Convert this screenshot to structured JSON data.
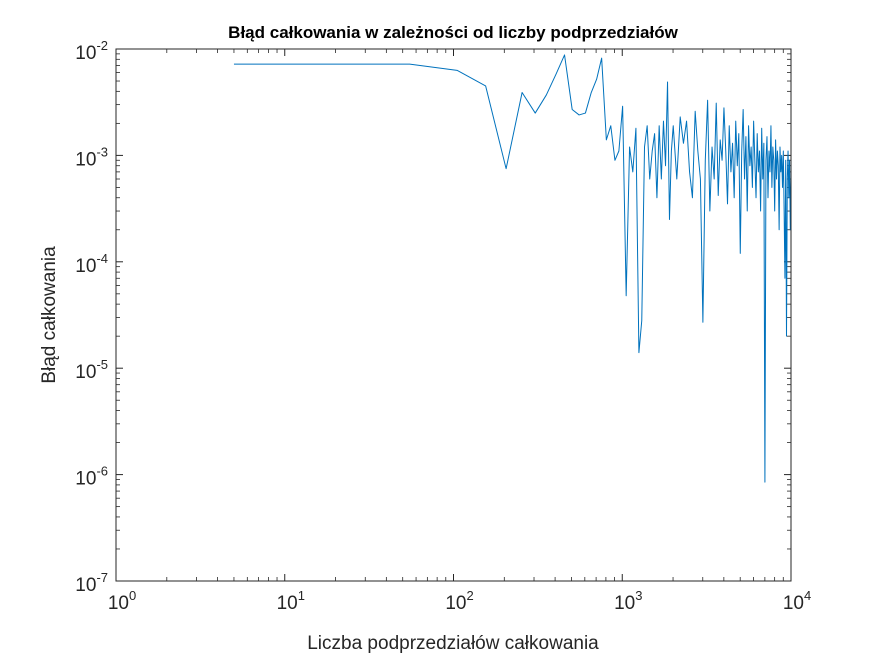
{
  "chart_data": {
    "type": "line",
    "title": "Błąd całkowania w zależności od liczby podprzedziałów",
    "xlabel": "Liczba podprzedziałów całkowania",
    "ylabel": "Błąd całkowania",
    "xscale": "log",
    "yscale": "log",
    "xlim": [
      1,
      10000
    ],
    "ylim": [
      1e-07,
      0.01
    ],
    "x_ticks": [
      {
        "mantissa": "10",
        "exp": "0"
      },
      {
        "mantissa": "10",
        "exp": "1"
      },
      {
        "mantissa": "10",
        "exp": "2"
      },
      {
        "mantissa": "10",
        "exp": "3"
      },
      {
        "mantissa": "10",
        "exp": "4"
      }
    ],
    "y_ticks": [
      {
        "mantissa": "10",
        "exp": "-7"
      },
      {
        "mantissa": "10",
        "exp": "-6"
      },
      {
        "mantissa": "10",
        "exp": "-5"
      },
      {
        "mantissa": "10",
        "exp": "-4"
      },
      {
        "mantissa": "10",
        "exp": "-3"
      },
      {
        "mantissa": "10",
        "exp": "-2"
      }
    ],
    "grid": false,
    "line_color": "#0072BD",
    "series": [
      {
        "x": [
          5,
          55,
          105,
          155,
          205,
          255,
          305,
          355,
          405,
          455,
          505,
          555,
          605,
          655,
          705,
          755,
          805,
          855,
          905,
          955,
          1005,
          1055,
          1105,
          1155,
          1205,
          1255,
          1305,
          1355,
          1405,
          1455,
          1505,
          1555,
          1605,
          1655,
          1705,
          1755,
          1805,
          1855,
          1905,
          1955,
          2005,
          2105,
          2205,
          2305,
          2405,
          2505,
          2605,
          2705,
          2805,
          2905,
          3005,
          3105,
          3205,
          3305,
          3405,
          3505,
          3605,
          3705,
          3805,
          3905,
          4005,
          4105,
          4205,
          4305,
          4405,
          4505,
          4605,
          4705,
          4805,
          4905,
          5005,
          5105,
          5205,
          5305,
          5405,
          5505,
          5605,
          5705,
          5805,
          5905,
          6005,
          6105,
          6205,
          6305,
          6405,
          6505,
          6605,
          6705,
          6805,
          6905,
          7005,
          7105,
          7205,
          7305,
          7405,
          7505,
          7605,
          7705,
          7805,
          7905,
          8005,
          8105,
          8205,
          8305,
          8405,
          8505,
          8605,
          8705,
          8805,
          8905,
          9005,
          9105,
          9205,
          9305,
          9405,
          9505,
          9605,
          9705,
          9805,
          9905,
          9995
        ],
        "y": [
          0.0072,
          0.0072,
          0.0063,
          0.0045,
          0.00075,
          0.0039,
          0.0025,
          0.0037,
          0.0058,
          0.0088,
          0.0027,
          0.0024,
          0.0025,
          0.0039,
          0.0052,
          0.0082,
          0.0014,
          0.0019,
          0.0009,
          0.0011,
          0.0029,
          4.8e-05,
          0.0012,
          0.0007,
          0.0018,
          1.4e-05,
          2.8e-05,
          0.0012,
          0.0019,
          0.0006,
          0.0011,
          0.0016,
          0.0004,
          0.0019,
          0.0006,
          0.0021,
          0.0008,
          0.0049,
          0.00025,
          0.0011,
          0.0019,
          0.0006,
          0.0023,
          0.0013,
          0.0021,
          0.0007,
          0.0004,
          0.0026,
          0.0011,
          0.0006,
          2.7e-05,
          0.0009,
          0.0033,
          0.0003,
          0.0012,
          0.0006,
          0.0031,
          0.00042,
          0.0014,
          0.0009,
          0.0028,
          0.0011,
          0.00035,
          0.0019,
          0.0007,
          0.0013,
          0.0004,
          0.0021,
          0.0008,
          0.0016,
          0.00012,
          0.0011,
          0.0027,
          0.0006,
          0.0015,
          0.0003,
          0.0019,
          0.0008,
          0.0012,
          0.0005,
          0.0021,
          0.0009,
          0.0004,
          0.0016,
          0.0007,
          0.0011,
          0.0003,
          0.0018,
          0.0006,
          0.0013,
          8.5e-07,
          0.0009,
          0.0015,
          0.0004,
          0.0011,
          0.0007,
          0.0019,
          0.0005,
          0.0012,
          0.0009,
          0.0003,
          0.0014,
          0.0006,
          0.0011,
          0.0008,
          0.0002,
          0.0012,
          0.0007,
          0.001,
          0.0005,
          0.0011,
          0.0003,
          7e-05,
          0.0009,
          2e-05,
          0.0006,
          0.0011,
          0.0004,
          0.0009,
          0.0002,
          0.0006
        ]
      }
    ]
  }
}
